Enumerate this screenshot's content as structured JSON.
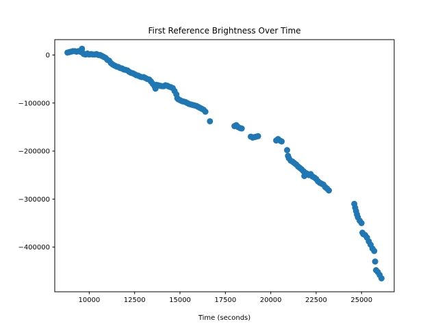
{
  "chart_data": {
    "type": "scatter",
    "title": "First Reference Brightness Over Time",
    "xlabel": "Time (seconds)",
    "ylabel": "",
    "xlim": [
      8100,
      26800
    ],
    "ylim": [
      -493000,
      32000
    ],
    "xticks": [
      10000,
      12500,
      15000,
      17500,
      20000,
      22500,
      25000
    ],
    "xtick_labels": [
      "10000",
      "12500",
      "15000",
      "17500",
      "20000",
      "22500",
      "25000"
    ],
    "yticks": [
      0,
      -100000,
      -200000,
      -300000,
      -400000
    ],
    "ytick_labels": [
      "0",
      "−100000",
      "−200000",
      "−300000",
      "−400000"
    ],
    "marker_color": "#1f77b4",
    "points": [
      {
        "x": 8800,
        "y": 5000
      },
      {
        "x": 8900,
        "y": 6000
      },
      {
        "x": 9000,
        "y": 7000
      },
      {
        "x": 9100,
        "y": 8000
      },
      {
        "x": 9200,
        "y": 8000
      },
      {
        "x": 9300,
        "y": 7000
      },
      {
        "x": 9400,
        "y": 8000
      },
      {
        "x": 9500,
        "y": 7000
      },
      {
        "x": 9600,
        "y": 13000
      },
      {
        "x": 9650,
        "y": 4000
      },
      {
        "x": 9700,
        "y": 2000
      },
      {
        "x": 9800,
        "y": 1000
      },
      {
        "x": 9900,
        "y": 3000
      },
      {
        "x": 10000,
        "y": 1000
      },
      {
        "x": 10100,
        "y": 2000
      },
      {
        "x": 10200,
        "y": 1000
      },
      {
        "x": 10300,
        "y": 1000
      },
      {
        "x": 10400,
        "y": 2000
      },
      {
        "x": 10500,
        "y": 0
      },
      {
        "x": 10600,
        "y": 0
      },
      {
        "x": 10700,
        "y": -2000
      },
      {
        "x": 10800,
        "y": -4000
      },
      {
        "x": 10900,
        "y": -6000
      },
      {
        "x": 11000,
        "y": -10000
      },
      {
        "x": 11100,
        "y": -12000
      },
      {
        "x": 11200,
        "y": -17000
      },
      {
        "x": 11300,
        "y": -20000
      },
      {
        "x": 11400,
        "y": -22000
      },
      {
        "x": 11500,
        "y": -24000
      },
      {
        "x": 11600,
        "y": -25000
      },
      {
        "x": 11700,
        "y": -27000
      },
      {
        "x": 11800,
        "y": -28000
      },
      {
        "x": 11900,
        "y": -30000
      },
      {
        "x": 12000,
        "y": -31000
      },
      {
        "x": 12100,
        "y": -32000
      },
      {
        "x": 12200,
        "y": -35000
      },
      {
        "x": 12300,
        "y": -37000
      },
      {
        "x": 12400,
        "y": -38000
      },
      {
        "x": 12500,
        "y": -40000
      },
      {
        "x": 12600,
        "y": -42000
      },
      {
        "x": 12700,
        "y": -43000
      },
      {
        "x": 12800,
        "y": -45000
      },
      {
        "x": 12900,
        "y": -46000
      },
      {
        "x": 13000,
        "y": -46000
      },
      {
        "x": 13100,
        "y": -48000
      },
      {
        "x": 13200,
        "y": -50000
      },
      {
        "x": 13300,
        "y": -51000
      },
      {
        "x": 13400,
        "y": -55000
      },
      {
        "x": 13500,
        "y": -60000
      },
      {
        "x": 13600,
        "y": -65000
      },
      {
        "x": 13650,
        "y": -70000
      },
      {
        "x": 13700,
        "y": -62000
      },
      {
        "x": 13800,
        "y": -63000
      },
      {
        "x": 13900,
        "y": -64000
      },
      {
        "x": 14000,
        "y": -65000
      },
      {
        "x": 14100,
        "y": -65000
      },
      {
        "x": 14200,
        "y": -63000
      },
      {
        "x": 14300,
        "y": -64000
      },
      {
        "x": 14400,
        "y": -66000
      },
      {
        "x": 14500,
        "y": -67000
      },
      {
        "x": 14600,
        "y": -69000
      },
      {
        "x": 14700,
        "y": -75000
      },
      {
        "x": 14800,
        "y": -82000
      },
      {
        "x": 14850,
        "y": -90000
      },
      {
        "x": 14900,
        "y": -92000
      },
      {
        "x": 15000,
        "y": -94000
      },
      {
        "x": 15100,
        "y": -96000
      },
      {
        "x": 15200,
        "y": -97000
      },
      {
        "x": 15300,
        "y": -98000
      },
      {
        "x": 15400,
        "y": -100000
      },
      {
        "x": 15500,
        "y": -102000
      },
      {
        "x": 15600,
        "y": -103000
      },
      {
        "x": 15700,
        "y": -104000
      },
      {
        "x": 15800,
        "y": -105000
      },
      {
        "x": 15900,
        "y": -106000
      },
      {
        "x": 16000,
        "y": -108000
      },
      {
        "x": 16100,
        "y": -110000
      },
      {
        "x": 16200,
        "y": -112000
      },
      {
        "x": 16300,
        "y": -114000
      },
      {
        "x": 16400,
        "y": -118000
      },
      {
        "x": 16650,
        "y": -138000
      },
      {
        "x": 18000,
        "y": -148000
      },
      {
        "x": 18100,
        "y": -146000
      },
      {
        "x": 18200,
        "y": -150000
      },
      {
        "x": 18300,
        "y": -152000
      },
      {
        "x": 18400,
        "y": -153000
      },
      {
        "x": 18900,
        "y": -170000
      },
      {
        "x": 19000,
        "y": -172000
      },
      {
        "x": 19100,
        "y": -171000
      },
      {
        "x": 19200,
        "y": -170000
      },
      {
        "x": 19300,
        "y": -169000
      },
      {
        "x": 20300,
        "y": -178000
      },
      {
        "x": 20400,
        "y": -175000
      },
      {
        "x": 20500,
        "y": -178000
      },
      {
        "x": 20600,
        "y": -180000
      },
      {
        "x": 20900,
        "y": -198000
      },
      {
        "x": 20950,
        "y": -210000
      },
      {
        "x": 21000,
        "y": -215000
      },
      {
        "x": 21100,
        "y": -220000
      },
      {
        "x": 21200,
        "y": -222000
      },
      {
        "x": 21300,
        "y": -225000
      },
      {
        "x": 21400,
        "y": -228000
      },
      {
        "x": 21500,
        "y": -232000
      },
      {
        "x": 21600,
        "y": -235000
      },
      {
        "x": 21700,
        "y": -238000
      },
      {
        "x": 21800,
        "y": -242000
      },
      {
        "x": 21850,
        "y": -252000
      },
      {
        "x": 21900,
        "y": -245000
      },
      {
        "x": 22000,
        "y": -247000
      },
      {
        "x": 22100,
        "y": -250000
      },
      {
        "x": 22200,
        "y": -248000
      },
      {
        "x": 22300,
        "y": -253000
      },
      {
        "x": 22400,
        "y": -255000
      },
      {
        "x": 22500,
        "y": -258000
      },
      {
        "x": 22600,
        "y": -263000
      },
      {
        "x": 22700,
        "y": -266000
      },
      {
        "x": 22800,
        "y": -268000
      },
      {
        "x": 22900,
        "y": -270000
      },
      {
        "x": 23000,
        "y": -275000
      },
      {
        "x": 23100,
        "y": -278000
      },
      {
        "x": 23200,
        "y": -282000
      },
      {
        "x": 24600,
        "y": -310000
      },
      {
        "x": 24650,
        "y": -318000
      },
      {
        "x": 24700,
        "y": -325000
      },
      {
        "x": 24750,
        "y": -332000
      },
      {
        "x": 24800,
        "y": -338000
      },
      {
        "x": 24900,
        "y": -345000
      },
      {
        "x": 25000,
        "y": -350000
      },
      {
        "x": 25050,
        "y": -370000
      },
      {
        "x": 25100,
        "y": -373000
      },
      {
        "x": 25200,
        "y": -375000
      },
      {
        "x": 25300,
        "y": -380000
      },
      {
        "x": 25400,
        "y": -388000
      },
      {
        "x": 25500,
        "y": -395000
      },
      {
        "x": 25600,
        "y": -403000
      },
      {
        "x": 25700,
        "y": -408000
      },
      {
        "x": 25750,
        "y": -430000
      },
      {
        "x": 25800,
        "y": -448000
      },
      {
        "x": 25900,
        "y": -452000
      },
      {
        "x": 26000,
        "y": -458000
      },
      {
        "x": 26100,
        "y": -465000
      }
    ]
  }
}
